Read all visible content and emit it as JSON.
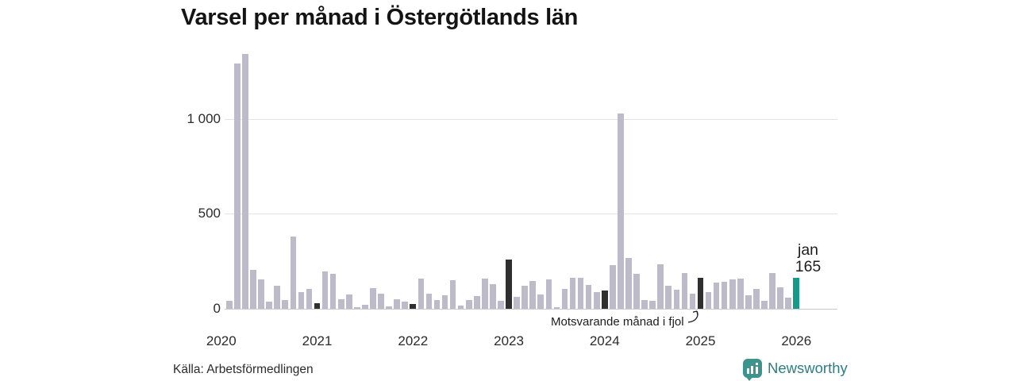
{
  "title": "Varsel per månad i Östergötlands län",
  "source": "Källa: Arbetsförmedlingen",
  "annotation": {
    "text": "Motsvarande månad i fjol",
    "points_to": "2025-01"
  },
  "current_point_label": {
    "month": "jan",
    "value": "165"
  },
  "branding": {
    "name": "Newsworthy"
  },
  "colors": {
    "bar": "#bdbac9",
    "bar_fjol": "#2f2f2f",
    "bar_current": "#169b8b",
    "grid": "#e3e3e3",
    "axis": "#c9c9c9",
    "brand_icon": "#3d948c",
    "brand_text": "#2f7d81"
  },
  "chart_data": {
    "type": "bar",
    "title": "Varsel per månad i Östergötlands län",
    "xlabel": "",
    "ylabel": "",
    "ylim": [
      0,
      1380
    ],
    "grid": "horizontal",
    "legend_position": "none",
    "yticks": [
      {
        "value": 0,
        "label": "0"
      },
      {
        "value": 500,
        "label": "500"
      },
      {
        "value": 1000,
        "label": "1 000"
      }
    ],
    "xticks": [
      {
        "label": "2020",
        "month_index": 0
      },
      {
        "label": "2021",
        "month_index": 12
      },
      {
        "label": "2022",
        "month_index": 24
      },
      {
        "label": "2023",
        "month_index": 36
      },
      {
        "label": "2024",
        "month_index": 48
      },
      {
        "label": "2025",
        "month_index": 60
      },
      {
        "label": "2026",
        "month_index": 72
      }
    ],
    "months": [
      {
        "month": "2020-01",
        "value": 0
      },
      {
        "month": "2020-02",
        "value": 40
      },
      {
        "month": "2020-03",
        "value": 1295
      },
      {
        "month": "2020-04",
        "value": 1345
      },
      {
        "month": "2020-05",
        "value": 205
      },
      {
        "month": "2020-06",
        "value": 155
      },
      {
        "month": "2020-07",
        "value": 36
      },
      {
        "month": "2020-08",
        "value": 123
      },
      {
        "month": "2020-09",
        "value": 46
      },
      {
        "month": "2020-10",
        "value": 380
      },
      {
        "month": "2020-11",
        "value": 86
      },
      {
        "month": "2020-12",
        "value": 105
      },
      {
        "month": "2021-01",
        "value": 30,
        "highlight": "fjol"
      },
      {
        "month": "2021-02",
        "value": 195
      },
      {
        "month": "2021-03",
        "value": 185
      },
      {
        "month": "2021-04",
        "value": 50
      },
      {
        "month": "2021-05",
        "value": 74
      },
      {
        "month": "2021-06",
        "value": 8
      },
      {
        "month": "2021-07",
        "value": 22
      },
      {
        "month": "2021-08",
        "value": 110
      },
      {
        "month": "2021-09",
        "value": 81
      },
      {
        "month": "2021-10",
        "value": 11
      },
      {
        "month": "2021-11",
        "value": 50
      },
      {
        "month": "2021-12",
        "value": 38
      },
      {
        "month": "2022-01",
        "value": 24,
        "highlight": "fjol"
      },
      {
        "month": "2022-02",
        "value": 160
      },
      {
        "month": "2022-03",
        "value": 81
      },
      {
        "month": "2022-04",
        "value": 47
      },
      {
        "month": "2022-05",
        "value": 71
      },
      {
        "month": "2022-06",
        "value": 151
      },
      {
        "month": "2022-07",
        "value": 15
      },
      {
        "month": "2022-08",
        "value": 47
      },
      {
        "month": "2022-09",
        "value": 67
      },
      {
        "month": "2022-10",
        "value": 158
      },
      {
        "month": "2022-11",
        "value": 130
      },
      {
        "month": "2022-12",
        "value": 43
      },
      {
        "month": "2023-01",
        "value": 258,
        "highlight": "fjol"
      },
      {
        "month": "2023-02",
        "value": 64
      },
      {
        "month": "2023-03",
        "value": 120
      },
      {
        "month": "2023-04",
        "value": 148
      },
      {
        "month": "2023-05",
        "value": 75
      },
      {
        "month": "2023-06",
        "value": 153
      },
      {
        "month": "2023-07",
        "value": 8
      },
      {
        "month": "2023-08",
        "value": 106
      },
      {
        "month": "2023-09",
        "value": 162
      },
      {
        "month": "2023-10",
        "value": 165
      },
      {
        "month": "2023-11",
        "value": 125
      },
      {
        "month": "2023-12",
        "value": 90
      },
      {
        "month": "2024-01",
        "value": 95,
        "highlight": "fjol"
      },
      {
        "month": "2024-02",
        "value": 230
      },
      {
        "month": "2024-03",
        "value": 1030
      },
      {
        "month": "2024-04",
        "value": 268
      },
      {
        "month": "2024-05",
        "value": 185
      },
      {
        "month": "2024-06",
        "value": 47
      },
      {
        "month": "2024-07",
        "value": 43
      },
      {
        "month": "2024-08",
        "value": 235
      },
      {
        "month": "2024-09",
        "value": 122
      },
      {
        "month": "2024-10",
        "value": 102
      },
      {
        "month": "2024-11",
        "value": 190
      },
      {
        "month": "2024-12",
        "value": 78
      },
      {
        "month": "2025-01",
        "value": 163,
        "highlight": "fjol"
      },
      {
        "month": "2025-02",
        "value": 88
      },
      {
        "month": "2025-03",
        "value": 140
      },
      {
        "month": "2025-04",
        "value": 144
      },
      {
        "month": "2025-05",
        "value": 155
      },
      {
        "month": "2025-06",
        "value": 160
      },
      {
        "month": "2025-07",
        "value": 70
      },
      {
        "month": "2025-08",
        "value": 103
      },
      {
        "month": "2025-09",
        "value": 43
      },
      {
        "month": "2025-10",
        "value": 190
      },
      {
        "month": "2025-11",
        "value": 115
      },
      {
        "month": "2025-12",
        "value": 57
      },
      {
        "month": "2026-01",
        "value": 165,
        "highlight": "current"
      }
    ]
  }
}
